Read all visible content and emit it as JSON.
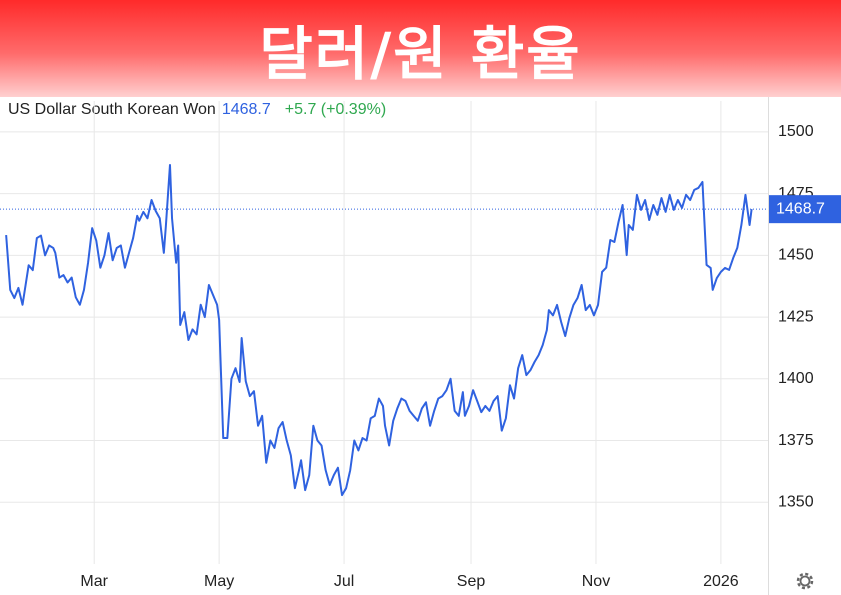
{
  "banner": {
    "title": "달러/원 환율"
  },
  "chart_data": {
    "type": "line",
    "current": 1468.7,
    "change": "+5.7 (+0.39%)",
    "x": [
      16,
      18,
      20,
      22,
      24,
      27,
      29,
      31,
      33,
      35,
      37,
      39,
      40,
      42,
      44,
      46,
      48,
      50,
      52,
      54,
      56,
      58,
      60,
      62,
      64,
      66,
      68,
      70,
      72,
      74,
      76,
      78,
      80,
      81,
      83,
      85,
      87,
      89,
      91,
      93,
      94,
      96,
      97,
      99,
      100,
      101,
      103,
      105,
      107,
      109,
      111,
      113,
      115,
      117,
      119,
      120,
      122,
      124,
      126,
      128,
      130,
      131,
      133,
      135,
      137,
      139,
      141,
      143,
      145,
      147,
      149,
      151,
      153,
      155,
      157,
      159,
      160,
      162,
      164,
      166,
      168,
      170,
      172,
      174,
      176,
      178,
      180,
      182,
      184,
      186,
      188,
      190,
      192,
      194,
      196,
      198,
      200,
      201,
      203,
      205,
      207,
      209,
      211,
      213,
      215,
      217,
      219,
      221,
      223,
      225,
      227,
      229,
      231,
      233,
      235,
      237,
      239,
      240,
      242,
      244,
      246,
      248,
      250,
      252,
      254,
      256,
      258,
      260,
      262,
      264,
      266,
      268,
      270,
      272,
      274,
      276,
      278,
      280,
      281,
      283,
      285,
      287,
      289,
      291,
      293,
      295,
      297,
      299,
      301,
      303,
      305,
      307,
      309,
      311,
      313,
      315,
      317,
      319,
      320,
      322,
      324,
      326,
      328,
      330,
      332,
      334,
      336,
      338,
      340,
      342,
      344,
      346,
      348,
      350,
      352,
      354,
      356,
      358,
      360,
      361,
      363,
      365,
      367,
      369,
      371,
      373,
      375,
      377,
      379,
      380
    ],
    "series": [
      {
        "name": "US Dollar South Korean Won",
        "color": "#2f62e0",
        "values": [
          1458.2,
          1436,
          1432.7,
          1436.8,
          1430,
          1446,
          1444,
          1457,
          1458,
          1450,
          1454,
          1453,
          1451,
          1441,
          1442,
          1439,
          1441,
          1433,
          1430,
          1436,
          1447,
          1461,
          1456,
          1445,
          1450,
          1459,
          1448,
          1453,
          1454,
          1445,
          1451,
          1457,
          1466,
          1464,
          1467.6,
          1465,
          1472.4,
          1468,
          1465,
          1451,
          1462,
          1486.6,
          1465,
          1447,
          1454,
          1421.8,
          1427,
          1415.7,
          1420,
          1418,
          1430,
          1425,
          1438,
          1434,
          1430,
          1423.8,
          1376,
          1376,
          1400,
          1404.3,
          1398.7,
          1416.5,
          1399,
          1393,
          1395,
          1381,
          1385,
          1366,
          1375,
          1372,
          1380,
          1382.5,
          1375,
          1369,
          1355.7,
          1363,
          1367,
          1354.9,
          1361,
          1381,
          1375,
          1373,
          1363,
          1357,
          1361,
          1364,
          1352.9,
          1355.7,
          1363,
          1375,
          1371,
          1376,
          1375,
          1384,
          1385,
          1392,
          1389,
          1381,
          1373,
          1383,
          1388,
          1392,
          1391,
          1387,
          1385,
          1383,
          1388,
          1390.5,
          1381,
          1387,
          1392,
          1393,
          1395.4,
          1400,
          1387,
          1385,
          1394.6,
          1385,
          1389,
          1395.4,
          1391,
          1386.5,
          1389,
          1387,
          1391,
          1393,
          1379,
          1384,
          1397.4,
          1392,
          1404.3,
          1409.6,
          1401.5,
          1403.5,
          1406.8,
          1409.6,
          1413.7,
          1419.7,
          1427.8,
          1425.7,
          1429.9,
          1423,
          1417.3,
          1424.6,
          1429.9,
          1432.7,
          1438,
          1427.8,
          1429.9,
          1425.7,
          1429.9,
          1443.3,
          1445,
          1456.2,
          1455.4,
          1463.5,
          1470.4,
          1450.1,
          1462.3,
          1460.3,
          1474.5,
          1468.4,
          1472.4,
          1464.3,
          1470.4,
          1466.4,
          1473.2,
          1467.6,
          1474.5,
          1468.4,
          1472.4,
          1469.2,
          1474.5,
          1472.4,
          1476.5,
          1477.3,
          1479.7,
          1446.1,
          1444.9,
          1436,
          1440.8,
          1443.3,
          1444.9,
          1444.1,
          1448.9,
          1453,
          1462.3,
          1474.5,
          1462.3,
          1468.7
        ]
      }
    ],
    "xlim": [
      13,
      388
    ],
    "xticks": [
      {
        "value": 59,
        "label": "Mar"
      },
      {
        "value": 120,
        "label": "May"
      },
      {
        "value": 181,
        "label": "Jul"
      },
      {
        "value": 243,
        "label": "Sep"
      },
      {
        "value": 304,
        "label": "Nov"
      },
      {
        "value": 365,
        "label": "2026"
      }
    ],
    "ylim": [
      1325,
      1512.5
    ],
    "yticks": [
      1350,
      1375,
      1400,
      1425,
      1450,
      1475,
      1500
    ],
    "grid": true
  }
}
